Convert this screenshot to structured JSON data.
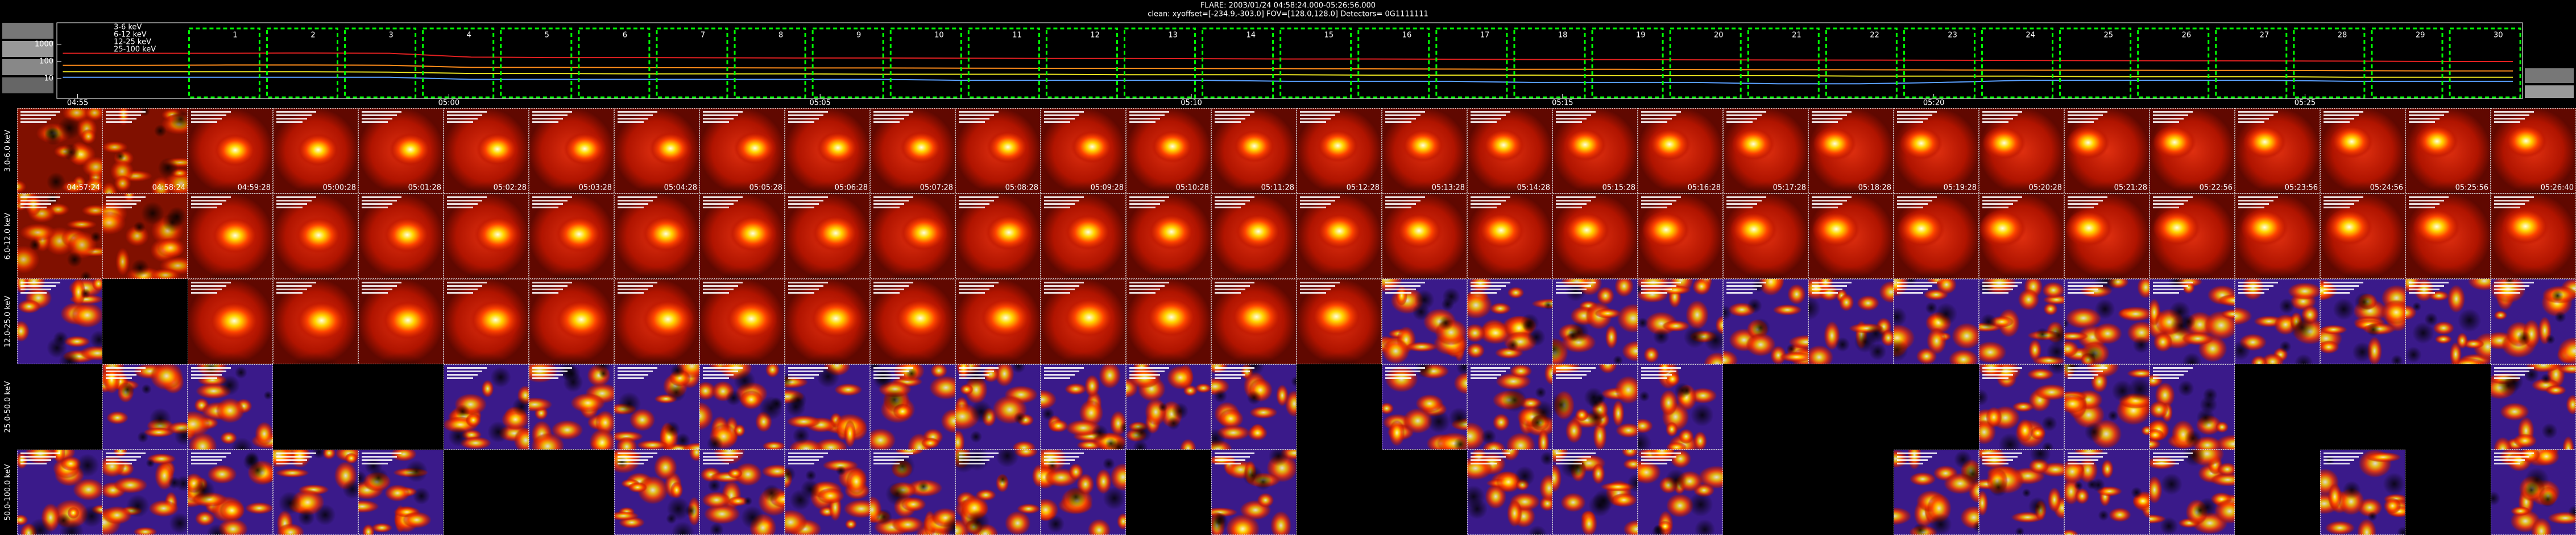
{
  "chart_data": {
    "type": "line",
    "title": "FLARE: 2003/01/24 04:58:24.000-05:26:56.000",
    "subtitle": "clean:   xyoffset=[-234.9,-303.0]    FOV=[128.0,128.0]    Detectors= 0G1111111",
    "x": [
      294.8,
      295.9,
      297.0,
      298.1,
      299.2,
      300.3,
      301.4,
      302.5,
      303.6,
      304.7,
      305.8,
      306.9,
      308.0,
      309.1,
      310.2,
      311.3,
      312.4,
      313.5,
      314.6,
      315.7,
      316.8,
      317.9,
      319.0,
      320.1,
      321.2,
      322.3,
      323.4,
      324.5,
      325.6,
      326.7,
      327.8
    ],
    "xlim": [
      294.72,
      327.93
    ],
    "xticks": [
      {
        "value": 295,
        "label": "04:55"
      },
      {
        "value": 300,
        "label": "05:00"
      },
      {
        "value": 305,
        "label": "05:05"
      },
      {
        "value": 310,
        "label": "05:10"
      },
      {
        "value": 315,
        "label": "05:15"
      },
      {
        "value": 320,
        "label": "05:20"
      },
      {
        "value": 325,
        "label": "05:25"
      }
    ],
    "ylim": [
      0.7,
      18000
    ],
    "log_y": true,
    "yticks": [
      1000,
      100,
      10
    ],
    "series": [
      {
        "name": "3-6 keV",
        "color": "#e02020",
        "values": [
          300,
          300,
          300,
          310,
          300,
          180,
          170,
          170,
          165,
          160,
          160,
          155,
          150,
          150,
          145,
          140,
          140,
          135,
          130,
          128,
          125,
          122,
          120,
          118,
          115,
          112,
          110,
          108,
          105,
          100,
          100
        ]
      },
      {
        "name": "6-12 keV",
        "color": "#ff8c1a",
        "values": [
          60,
          60,
          62,
          62,
          60,
          45,
          45,
          44,
          43,
          42,
          42,
          41,
          40,
          40,
          39,
          38,
          37,
          36,
          35,
          35,
          34,
          33,
          33,
          32,
          31,
          31,
          30,
          30,
          29,
          28,
          28
        ]
      },
      {
        "name": "12-25 keV",
        "color": "#e8e020",
        "values": [
          25,
          25,
          25,
          25,
          24,
          20,
          20,
          19,
          19,
          19,
          18,
          18,
          18,
          17,
          17,
          17,
          16,
          16,
          16,
          15,
          15,
          15,
          14,
          14,
          14,
          13,
          13,
          13,
          12,
          12,
          12
        ]
      },
      {
        "name": "25-100 keV",
        "color": "#5aa0ff",
        "values": [
          12,
          12,
          12,
          12,
          12,
          9,
          9,
          9,
          9,
          9,
          9,
          8,
          8,
          8,
          8,
          7,
          7,
          7,
          6,
          6,
          6,
          5,
          5,
          6,
          8,
          8,
          8,
          8,
          7,
          7,
          7
        ]
      }
    ],
    "intervals": [
      {
        "label": "1",
        "start": 296.5,
        "end": 297.45
      },
      {
        "label": "2",
        "start": 297.55,
        "end": 298.5
      },
      {
        "label": "3",
        "start": 298.6,
        "end": 299.55
      },
      {
        "label": "4",
        "start": 299.65,
        "end": 300.6
      },
      {
        "label": "5",
        "start": 300.7,
        "end": 301.65
      },
      {
        "label": "6",
        "start": 301.75,
        "end": 302.7
      },
      {
        "label": "7",
        "start": 302.8,
        "end": 303.75
      },
      {
        "label": "8",
        "start": 303.85,
        "end": 304.8
      },
      {
        "label": "9",
        "start": 304.9,
        "end": 305.85
      },
      {
        "label": "10",
        "start": 305.95,
        "end": 306.9
      },
      {
        "label": "11",
        "start": 307.0,
        "end": 307.95
      },
      {
        "label": "12",
        "start": 308.05,
        "end": 309.0
      },
      {
        "label": "13",
        "start": 309.1,
        "end": 310.05
      },
      {
        "label": "14",
        "start": 310.15,
        "end": 311.1
      },
      {
        "label": "15",
        "start": 311.2,
        "end": 312.15
      },
      {
        "label": "16",
        "start": 312.25,
        "end": 313.2
      },
      {
        "label": "17",
        "start": 313.3,
        "end": 314.25
      },
      {
        "label": "18",
        "start": 314.35,
        "end": 315.3
      },
      {
        "label": "19",
        "start": 315.4,
        "end": 316.35
      },
      {
        "label": "20",
        "start": 316.45,
        "end": 317.4
      },
      {
        "label": "21",
        "start": 317.5,
        "end": 318.45
      },
      {
        "label": "22",
        "start": 318.55,
        "end": 319.5
      },
      {
        "label": "23",
        "start": 319.6,
        "end": 320.55
      },
      {
        "label": "24",
        "start": 320.65,
        "end": 321.6
      },
      {
        "label": "25",
        "start": 321.7,
        "end": 322.65
      },
      {
        "label": "26",
        "start": 322.75,
        "end": 323.7
      },
      {
        "label": "27",
        "start": 323.8,
        "end": 324.75
      },
      {
        "label": "28",
        "start": 324.85,
        "end": 325.8
      },
      {
        "label": "29",
        "start": 325.9,
        "end": 326.85
      },
      {
        "label": "30",
        "start": 326.95,
        "end": 327.9
      }
    ]
  },
  "image_grid": {
    "rows": [
      "3.0-6.0 keV",
      "6.0-12.0 keV",
      "12.0-25.0 keV",
      "25.0-50.0 keV",
      "50.0-100.0 keV"
    ],
    "times": [
      "04:57:24",
      "04:58:24",
      "04:59:28",
      "05:00:28",
      "05:01:28",
      "05:02:28",
      "05:03:28",
      "05:04:28",
      "05:05:28",
      "05:06:28",
      "05:07:28",
      "05:08:28",
      "05:09:28",
      "05:10:28",
      "05:11:28",
      "05:12:28",
      "05:13:28",
      "05:14:28",
      "05:15:28",
      "05:16:28",
      "05:17:28",
      "05:18:28",
      "05:19:28",
      "05:20:28",
      "05:21:28",
      "05:22:56",
      "05:23:56",
      "05:24:56",
      "05:25:56",
      "05:26:40"
    ],
    "present": [
      [
        1,
        1,
        1,
        1,
        1,
        1,
        1,
        1,
        1,
        1,
        1,
        1,
        1,
        1,
        1,
        1,
        1,
        1,
        1,
        1,
        1,
        1,
        1,
        1,
        1,
        1,
        1,
        1,
        1,
        1
      ],
      [
        1,
        1,
        1,
        1,
        1,
        1,
        1,
        1,
        1,
        1,
        1,
        1,
        1,
        1,
        1,
        1,
        1,
        1,
        1,
        1,
        1,
        1,
        1,
        1,
        1,
        1,
        1,
        1,
        1,
        1
      ],
      [
        1,
        0,
        1,
        1,
        1,
        1,
        1,
        1,
        1,
        1,
        1,
        1,
        1,
        1,
        1,
        1,
        1,
        1,
        1,
        1,
        1,
        1,
        1,
        1,
        1,
        1,
        1,
        1,
        1,
        1
      ],
      [
        0,
        1,
        1,
        0,
        0,
        1,
        1,
        1,
        1,
        1,
        1,
        1,
        1,
        1,
        1,
        0,
        1,
        1,
        1,
        1,
        0,
        0,
        0,
        1,
        1,
        1,
        0,
        0,
        0,
        1
      ],
      [
        1,
        1,
        1,
        1,
        1,
        0,
        0,
        1,
        1,
        1,
        1,
        1,
        1,
        0,
        1,
        0,
        0,
        1,
        1,
        1,
        0,
        0,
        1,
        1,
        1,
        1,
        0,
        1,
        0,
        1
      ]
    ]
  }
}
